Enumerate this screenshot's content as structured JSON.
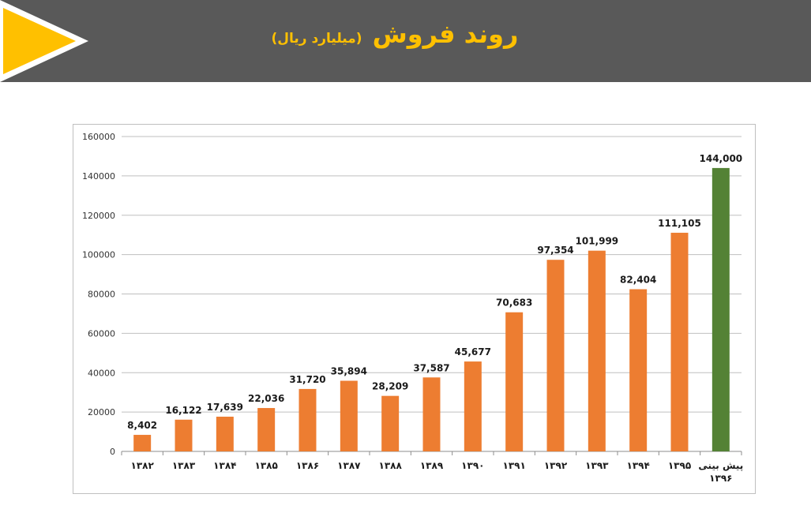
{
  "header": {
    "title": "روند فروش",
    "subtitle": "(میلیارد ریال)",
    "background_color": "#595959",
    "accent_color": "#FFC000",
    "arrow_icon": "play-arrow-icon"
  },
  "chart_data": {
    "type": "bar",
    "title": "",
    "xlabel": "",
    "ylabel": "",
    "ylim": [
      0,
      160000
    ],
    "yticks": [
      "0",
      "20000",
      "40000",
      "60000",
      "80000",
      "100000",
      "120000",
      "140000",
      "160000"
    ],
    "grid": true,
    "categories": [
      "۱۳۸۲",
      "۱۳۸۳",
      "۱۳۸۴",
      "۱۳۸۵",
      "۱۳۸۶",
      "۱۳۸۷",
      "۱۳۸۸",
      "۱۳۸۹",
      "۱۳۹۰",
      "۱۳۹۱",
      "۱۳۹۲",
      "۱۳۹۳",
      "۱۳۹۴",
      "۱۳۹۵",
      "پیش بینی ۱۳۹۶"
    ],
    "values": [
      8402,
      16122,
      17639,
      22036,
      31720,
      35894,
      28209,
      37587,
      45677,
      70683,
      97354,
      101999,
      82404,
      111105,
      144000
    ],
    "value_labels": [
      "8,402",
      "16,122",
      "17,639",
      "22,036",
      "31,720",
      "35,894",
      "28,209",
      "37,587",
      "45,677",
      "70,683",
      "97,354",
      "101,999",
      "82,404",
      "111,105",
      "144,000"
    ],
    "colors": {
      "actual": "#ED7D31",
      "forecast": "#548235"
    },
    "forecast_index": 14
  }
}
